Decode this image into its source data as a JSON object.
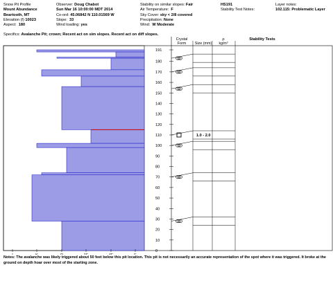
{
  "header": {
    "col1": {
      "title": "Snow Pit Profile",
      "location": "Mount Abundance",
      "region": "Beartooth, MT",
      "elevation_label": "Elevation (f)",
      "elevation": "10023",
      "aspect_label": "Aspect:",
      "aspect": "180"
    },
    "col2": {
      "observer_label": "Observer:",
      "observer": "Doug Chabot",
      "datetime": "Sun Mar 16 10:00:00 MDT 2014",
      "coords_label": "Co-ord:",
      "coords": "45.06842 N 110.01569 W",
      "slope_label": "Slope:",
      "slope": "33",
      "wind_loading_label": "Wind loading:",
      "wind_loading": "yes"
    },
    "col3": {
      "stability_label": "Stability on similar slopes:",
      "stability": "Fair",
      "air_temp_label": "Air Temperature:",
      "air_temp": "F",
      "sky_label": "Sky Cover:",
      "sky": "sky < 2/8 covered",
      "precip_label": "Precipitation:",
      "precip": "None",
      "wind_label": "Wind:",
      "wind": "W Moderate"
    },
    "col4": {
      "hs": "HS191",
      "stn_label": "Stability Test Notes:"
    },
    "col5": {
      "layer_notes_label": "Layer notes:",
      "layer_notes": "102.115: Problematic Layer"
    },
    "specifics_label": "Specifics:",
    "specifics": "Avalanche Pit; crown; Recent act on sim slopes. Recent act on diff slopes."
  },
  "table_headers": {
    "crystal": "Crystal",
    "form": "Form",
    "size": "Size (mm)",
    "rho": "ρ",
    "rho_unit": "kg/m³",
    "stability_tests": "Stability Tests"
  },
  "crystal_rows": [
    {
      "height": 183,
      "form": "rounds-icon",
      "size": ""
    },
    {
      "height": 170,
      "form": "rounds-icon",
      "size": ""
    },
    {
      "height": 154,
      "form": "rounds-icon",
      "size": ""
    },
    {
      "height": 110,
      "form": "faceted-icon",
      "size": "1.0 - 2.0"
    },
    {
      "height": 100,
      "form": "rounds-icon",
      "size": ""
    },
    {
      "height": 70,
      "form": "rounds-icon",
      "size": ""
    },
    {
      "height": 28,
      "form": "rounds-icon",
      "size": ""
    }
  ],
  "chart_data": {
    "type": "snow-hardness-profile",
    "x_ticks": [
      "I",
      "K",
      "P",
      "1F",
      "4F",
      "F"
    ],
    "y_ticks": [
      0,
      10,
      20,
      30,
      40,
      50,
      60,
      70,
      80,
      90,
      100,
      110,
      120,
      130,
      140,
      150,
      160,
      170,
      180,
      191
    ],
    "ylim": [
      0,
      191
    ],
    "layers": [
      {
        "top": 191,
        "bottom": 189,
        "hardness": "K"
      },
      {
        "top": 189,
        "bottom": 184,
        "hardness": "4F+"
      },
      {
        "top": 184,
        "bottom": 183,
        "hardness": "P-"
      },
      {
        "top": 183,
        "bottom": 172,
        "hardness": "4F"
      },
      {
        "top": 172,
        "bottom": 166,
        "hardness": "K+"
      },
      {
        "top": 166,
        "bottom": 156,
        "hardness": "1F-"
      },
      {
        "top": 156,
        "bottom": 115,
        "hardness": "P"
      },
      {
        "top": 115,
        "bottom": 102,
        "hardness": "1F+"
      },
      {
        "top": 102,
        "bottom": 98,
        "hardness": "K"
      },
      {
        "top": 98,
        "bottom": 74,
        "hardness": "P+"
      },
      {
        "top": 74,
        "bottom": 72,
        "hardness": "K+"
      },
      {
        "top": 72,
        "bottom": 28,
        "hardness": "K-"
      },
      {
        "top": 28,
        "bottom": 0,
        "hardness": "P"
      }
    ],
    "problem_layer": 115,
    "temperature_profile": []
  },
  "notes_label": "Notes:",
  "notes": "The avalanche was likely triggered about 50 feet below this pit location. This pit is not necessarily an accurate representation of the spot where it was triggered.  It broke at the ground on depth hoar over most of the starting zone."
}
